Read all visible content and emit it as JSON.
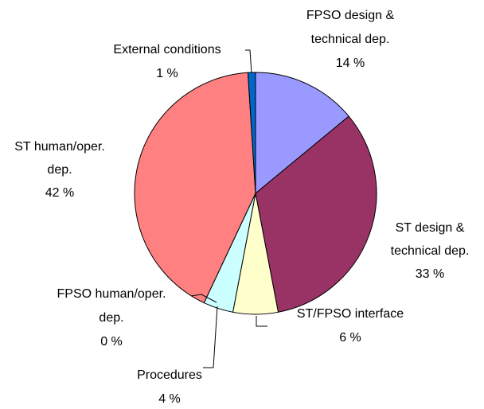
{
  "chart_data": {
    "type": "pie",
    "categories": [
      "FPSO design &\ntechnical dep.",
      "ST design &\ntechnical dep.",
      "ST/FPSO interface",
      "Procedures",
      "FPSO human/oper.\ndep.",
      "ST human/oper.\ndep.",
      "External conditions"
    ],
    "values": [
      14,
      33,
      6,
      4,
      0,
      42,
      1
    ],
    "value_labels": [
      "14 %",
      "33 %",
      "6 %",
      "4 %",
      "0 %",
      "42 %",
      "1 %"
    ],
    "colors": [
      "#9999ff",
      "#993366",
      "#ffffcc",
      "#ccffff",
      "#660066",
      "#ff8080",
      "#0066cc"
    ]
  }
}
